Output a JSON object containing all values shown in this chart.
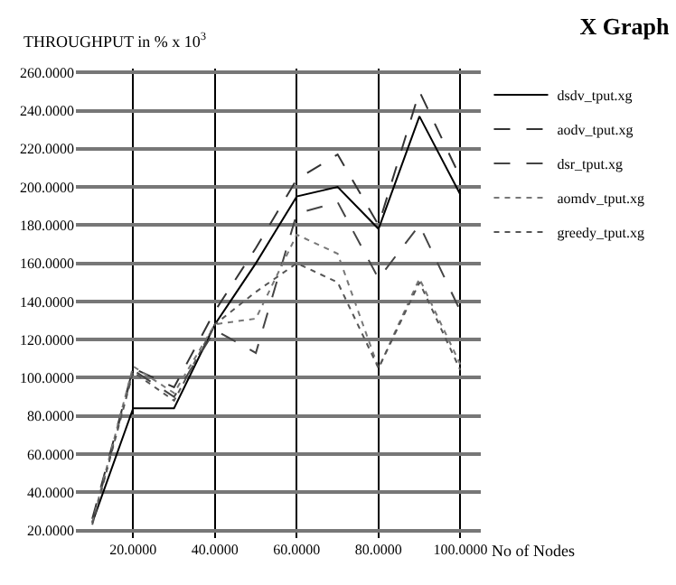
{
  "chart_data": {
    "type": "line",
    "title": "X Graph",
    "xlabel": "No of Nodes",
    "ylabel": "THROUGHPUT in % x 10$^{3}$",
    "x": [
      10,
      20,
      30,
      40,
      50,
      60,
      70,
      80,
      90,
      100
    ],
    "series": [
      {
        "name": "dsdv_tput.xg",
        "color": "#000000",
        "line_style": "solid",
        "values": [
          24,
          84,
          84,
          128,
          160,
          195,
          200,
          178,
          237,
          196
        ]
      },
      {
        "name": "aodv_tput.xg",
        "color": "#333333",
        "line_style": "dashed",
        "values": [
          26,
          105,
          95,
          135,
          168,
          204,
          217,
          180,
          250,
          205
        ]
      },
      {
        "name": "dsr_tput.xg",
        "color": "#444444",
        "line_style": "dashed",
        "values": [
          24,
          104,
          90,
          125,
          113,
          186,
          192,
          152,
          180,
          135
        ]
      },
      {
        "name": "aomdv_tput.xg",
        "color": "#777777",
        "line_style": "dotted",
        "values": [
          24,
          106,
          92,
          128,
          131,
          175,
          165,
          105,
          152,
          107
        ]
      },
      {
        "name": "greedy_tput.xg",
        "color": "#555555",
        "line_style": "dotted",
        "values": [
          23,
          103,
          88,
          128,
          145,
          160,
          150,
          105,
          150,
          104
        ]
      }
    ],
    "xlim": [
      6,
      105
    ],
    "ylim": [
      16,
      262
    ],
    "xticks": [
      {
        "value": 20,
        "label": "20.0000"
      },
      {
        "value": 40,
        "label": "40.0000"
      },
      {
        "value": 60,
        "label": "60.0000"
      },
      {
        "value": 80,
        "label": "80.0000"
      },
      {
        "value": 100,
        "label": "100.0000"
      }
    ],
    "yticks": [
      {
        "value": 20,
        "label": "20.0000"
      },
      {
        "value": 40,
        "label": "40.0000"
      },
      {
        "value": 60,
        "label": "60.0000"
      },
      {
        "value": 80,
        "label": "80.0000"
      },
      {
        "value": 100,
        "label": "100.0000"
      },
      {
        "value": 120,
        "label": "120.0000"
      },
      {
        "value": 140,
        "label": "140.0000"
      },
      {
        "value": 160,
        "label": "160.0000"
      },
      {
        "value": 180,
        "label": "180.0000"
      },
      {
        "value": 200,
        "label": "200.0000"
      },
      {
        "value": 220,
        "label": "220.0000"
      },
      {
        "value": 240,
        "label": "240.0000"
      },
      {
        "value": 260,
        "label": "260.0000"
      }
    ],
    "grid": true,
    "legend": "top right",
    "marker": "none"
  }
}
